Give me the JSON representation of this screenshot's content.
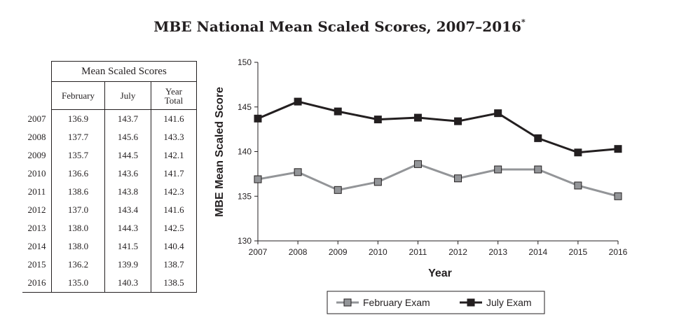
{
  "title": "MBE National Mean Scaled Scores, 2007–2016",
  "title_mark": "*",
  "table": {
    "group_header": "Mean Scaled Scores",
    "columns": [
      "February",
      "July",
      "Year Total"
    ],
    "rows": [
      {
        "year": "2007",
        "february": "136.9",
        "july": "143.7",
        "total": "141.6"
      },
      {
        "year": "2008",
        "february": "137.7",
        "july": "145.6",
        "total": "143.3"
      },
      {
        "year": "2009",
        "february": "135.7",
        "july": "144.5",
        "total": "142.1"
      },
      {
        "year": "2010",
        "february": "136.6",
        "july": "143.6",
        "total": "141.7"
      },
      {
        "year": "2011",
        "february": "138.6",
        "july": "143.8",
        "total": "142.3"
      },
      {
        "year": "2012",
        "february": "137.0",
        "july": "143.4",
        "total": "141.6"
      },
      {
        "year": "2013",
        "february": "138.0",
        "july": "144.3",
        "total": "142.5"
      },
      {
        "year": "2014",
        "february": "138.0",
        "july": "141.5",
        "total": "140.4"
      },
      {
        "year": "2015",
        "february": "136.2",
        "july": "139.9",
        "total": "138.7"
      },
      {
        "year": "2016",
        "february": "135.0",
        "july": "140.3",
        "total": "138.5"
      }
    ]
  },
  "chart_data": {
    "type": "line",
    "xlabel": "Year",
    "ylabel": "MBE Mean Scaled Score",
    "x": [
      "2007",
      "2008",
      "2009",
      "2010",
      "2011",
      "2012",
      "2013",
      "2014",
      "2015",
      "2016"
    ],
    "ylim": [
      130,
      150
    ],
    "yticks": [
      130,
      135,
      140,
      145,
      150
    ],
    "grid": false,
    "legend_position": "bottom",
    "series": [
      {
        "name": "February Exam",
        "color": "#939598",
        "marker": "square",
        "values": [
          136.9,
          137.7,
          135.7,
          136.6,
          138.6,
          137.0,
          138.0,
          138.0,
          136.2,
          135.0
        ]
      },
      {
        "name": "July Exam",
        "color": "#231f20",
        "marker": "square",
        "values": [
          143.7,
          145.6,
          144.5,
          143.6,
          143.8,
          143.4,
          144.3,
          141.5,
          139.9,
          140.3
        ]
      }
    ]
  }
}
